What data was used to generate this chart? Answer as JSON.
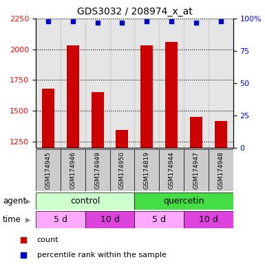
{
  "title": "GDS3032 / 208974_x_at",
  "samples": [
    "GSM174945",
    "GSM174946",
    "GSM174949",
    "GSM174950",
    "GSM174819",
    "GSM174944",
    "GSM174947",
    "GSM174948"
  ],
  "counts": [
    1680,
    2030,
    1650,
    1345,
    2030,
    2060,
    1450,
    1420
  ],
  "percentile_ranks": [
    98,
    98,
    97,
    97,
    98,
    98,
    97,
    98
  ],
  "ylim_left": [
    1200,
    2250
  ],
  "yticks_left": [
    1250,
    1500,
    1750,
    2000,
    2250
  ],
  "yticks_right": [
    0,
    25,
    50,
    75,
    100
  ],
  "ylim_right": [
    0,
    100
  ],
  "bar_color": "#cc0000",
  "dot_color": "#0000cc",
  "agent_control_light_color": "#ccffcc",
  "agent_quercetin_dark_color": "#44dd44",
  "time_light_color": "#ffaaff",
  "time_dark_color": "#dd44dd",
  "sample_bg_color": "#cccccc",
  "agent_label": "agent",
  "time_label": "time",
  "control_label": "control",
  "quercetin_label": "quercetin",
  "time_labels": [
    "5 d",
    "10 d",
    "5 d",
    "10 d"
  ],
  "legend_count_label": "count",
  "legend_percentile_label": "percentile rank within the sample",
  "n_samples": 8,
  "bar_width": 0.5
}
